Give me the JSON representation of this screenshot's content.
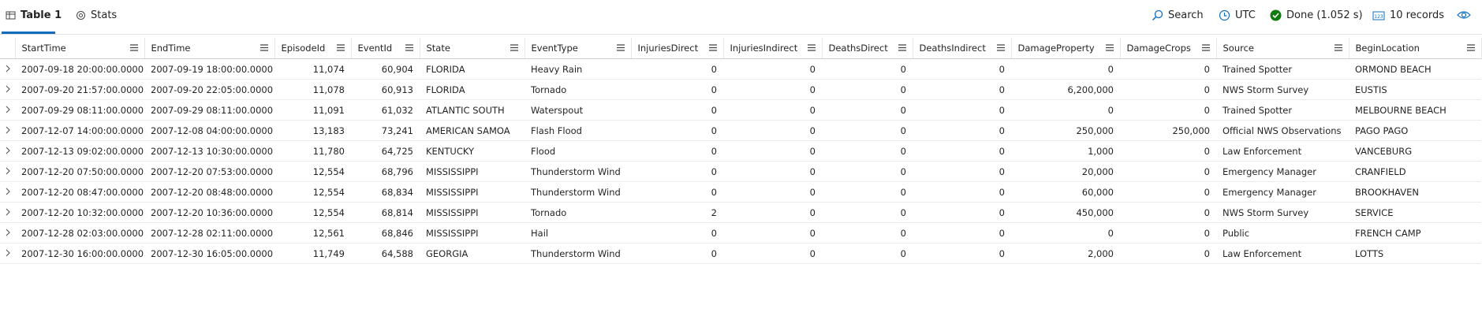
{
  "tabs": {
    "table": "Table 1",
    "stats": "Stats"
  },
  "toolbar": {
    "search": "Search",
    "timezone": "UTC",
    "status": "Done (1.052 s)",
    "records": "10 records"
  },
  "table": {
    "columns": [
      "StartTime",
      "EndTime",
      "EpisodeId",
      "EventId",
      "State",
      "EventType",
      "InjuriesDirect",
      "InjuriesIndirect",
      "DeathsDirect",
      "DeathsIndirect",
      "DamageProperty",
      "DamageCrops",
      "Source",
      "BeginLocation"
    ],
    "rows": [
      [
        "2007-09-18 20:00:00.0000",
        "2007-09-19 18:00:00.0000",
        "11,074",
        "60,904",
        "FLORIDA",
        "Heavy Rain",
        "0",
        "0",
        "0",
        "0",
        "0",
        "0",
        "Trained Spotter",
        "ORMOND BEACH"
      ],
      [
        "2007-09-20 21:57:00.0000",
        "2007-09-20 22:05:00.0000",
        "11,078",
        "60,913",
        "FLORIDA",
        "Tornado",
        "0",
        "0",
        "0",
        "0",
        "6,200,000",
        "0",
        "NWS Storm Survey",
        "EUSTIS"
      ],
      [
        "2007-09-29 08:11:00.0000",
        "2007-09-29 08:11:00.0000",
        "11,091",
        "61,032",
        "ATLANTIC SOUTH",
        "Waterspout",
        "0",
        "0",
        "0",
        "0",
        "0",
        "0",
        "Trained Spotter",
        "MELBOURNE BEACH"
      ],
      [
        "2007-12-07 14:00:00.0000",
        "2007-12-08 04:00:00.0000",
        "13,183",
        "73,241",
        "AMERICAN SAMOA",
        "Flash Flood",
        "0",
        "0",
        "0",
        "0",
        "250,000",
        "250,000",
        "Official NWS Observations",
        "PAGO PAGO"
      ],
      [
        "2007-12-13 09:02:00.0000",
        "2007-12-13 10:30:00.0000",
        "11,780",
        "64,725",
        "KENTUCKY",
        "Flood",
        "0",
        "0",
        "0",
        "0",
        "1,000",
        "0",
        "Law Enforcement",
        "VANCEBURG"
      ],
      [
        "2007-12-20 07:50:00.0000",
        "2007-12-20 07:53:00.0000",
        "12,554",
        "68,796",
        "MISSISSIPPI",
        "Thunderstorm Wind",
        "0",
        "0",
        "0",
        "0",
        "20,000",
        "0",
        "Emergency Manager",
        "CRANFIELD"
      ],
      [
        "2007-12-20 08:47:00.0000",
        "2007-12-20 08:48:00.0000",
        "12,554",
        "68,834",
        "MISSISSIPPI",
        "Thunderstorm Wind",
        "0",
        "0",
        "0",
        "0",
        "60,000",
        "0",
        "Emergency Manager",
        "BROOKHAVEN"
      ],
      [
        "2007-12-20 10:32:00.0000",
        "2007-12-20 10:36:00.0000",
        "12,554",
        "68,814",
        "MISSISSIPPI",
        "Tornado",
        "2",
        "0",
        "0",
        "0",
        "450,000",
        "0",
        "NWS Storm Survey",
        "SERVICE"
      ],
      [
        "2007-12-28 02:03:00.0000",
        "2007-12-28 02:11:00.0000",
        "12,561",
        "68,846",
        "MISSISSIPPI",
        "Hail",
        "0",
        "0",
        "0",
        "0",
        "0",
        "0",
        "Public",
        "FRENCH CAMP"
      ],
      [
        "2007-12-30 16:00:00.0000",
        "2007-12-30 16:05:00.0000",
        "11,749",
        "64,588",
        "GEORGIA",
        "Thunderstorm Wind",
        "0",
        "0",
        "0",
        "0",
        "2,000",
        "0",
        "Law Enforcement",
        "LOTTS"
      ]
    ]
  }
}
